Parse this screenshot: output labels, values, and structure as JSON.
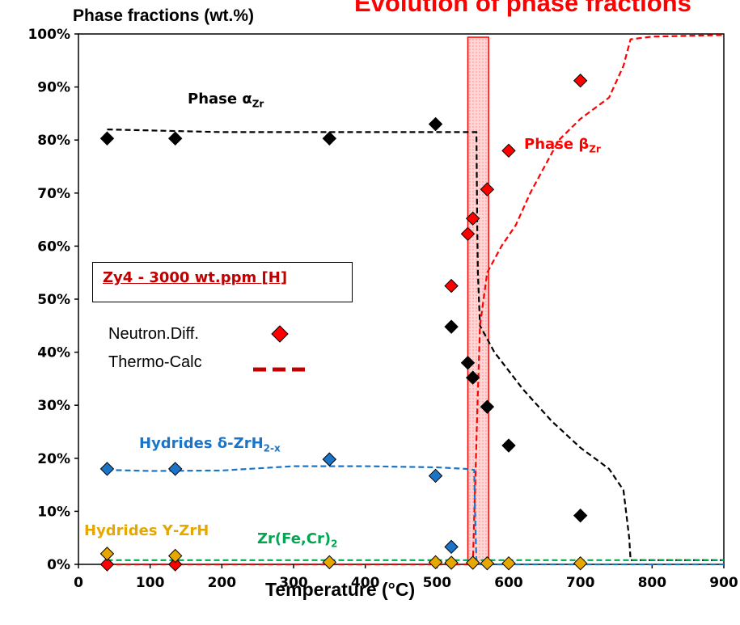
{
  "chart_data": {
    "type": "scatter",
    "title": "Evolution of phase fractions",
    "ylabel": "Phase fractions (wt.%)",
    "xlabel": "Temperature (°C)",
    "xlim": [
      0,
      900
    ],
    "ylim": [
      0,
      100
    ],
    "x_ticks": [
      0,
      100,
      200,
      300,
      400,
      500,
      600,
      700,
      800,
      900
    ],
    "y_ticks": [
      0,
      10,
      20,
      30,
      40,
      50,
      60,
      70,
      80,
      90,
      100
    ],
    "y_tick_suffix": "%",
    "highlight_band": {
      "x_range": [
        543,
        572
      ],
      "color": "#ff9999"
    },
    "inset_label": "Zy4 - 3000 wt.ppm [H]",
    "legend": [
      {
        "label": "Neutron.Diff.",
        "marker": "diamond",
        "color": "#ff0000"
      },
      {
        "label": "Thermo-Calc",
        "marker": "dashed-line",
        "color": "#c00000"
      }
    ],
    "series": [
      {
        "key": "alpha",
        "color": "#000000",
        "label_parts": [
          "Phase α",
          "Zr",
          ""
        ],
        "points": [
          [
            40,
            80.3
          ],
          [
            135,
            80.3
          ],
          [
            350,
            80.3
          ],
          [
            498,
            83
          ],
          [
            520,
            44.8
          ],
          [
            543,
            38
          ],
          [
            550,
            35.2
          ],
          [
            570,
            29.7
          ],
          [
            600,
            22.4
          ],
          [
            700,
            9.2
          ]
        ],
        "curve": [
          [
            40,
            82
          ],
          [
            200,
            81.5
          ],
          [
            350,
            81.5
          ],
          [
            500,
            81.5
          ],
          [
            555,
            81.5
          ],
          [
            556,
            65
          ],
          [
            557,
            55
          ],
          [
            560,
            45
          ],
          [
            580,
            40
          ],
          [
            620,
            33
          ],
          [
            660,
            27
          ],
          [
            700,
            22
          ],
          [
            740,
            18
          ],
          [
            760,
            14
          ],
          [
            768,
            5
          ],
          [
            770,
            0.8
          ],
          [
            900,
            0.8
          ]
        ]
      },
      {
        "key": "beta",
        "color": "#ff0000",
        "label_parts": [
          "Phase β",
          "Zr",
          ""
        ],
        "points": [
          [
            40,
            0
          ],
          [
            135,
            0
          ],
          [
            543,
            62.3
          ],
          [
            550,
            65.2
          ],
          [
            570,
            70.7
          ],
          [
            520,
            52.5
          ],
          [
            600,
            78
          ],
          [
            700,
            91.2
          ]
        ],
        "curve": [
          [
            40,
            0
          ],
          [
            550,
            0
          ],
          [
            556,
            28
          ],
          [
            560,
            45
          ],
          [
            570,
            55
          ],
          [
            590,
            60
          ],
          [
            610,
            64
          ],
          [
            630,
            70
          ],
          [
            650,
            75
          ],
          [
            670,
            80
          ],
          [
            700,
            84
          ],
          [
            740,
            88
          ],
          [
            760,
            94
          ],
          [
            770,
            99
          ],
          [
            800,
            99.5
          ],
          [
            900,
            99.8
          ]
        ]
      },
      {
        "key": "delta",
        "color": "#1a75c8",
        "label_parts": [
          "Hydrides δ-ZrH",
          "2-x",
          ""
        ],
        "points": [
          [
            40,
            18
          ],
          [
            135,
            18
          ],
          [
            350,
            19.8
          ],
          [
            498,
            16.7
          ],
          [
            520,
            3.3
          ]
        ],
        "curve": [
          [
            40,
            17.8
          ],
          [
            100,
            17.6
          ],
          [
            200,
            17.7
          ],
          [
            300,
            18.5
          ],
          [
            400,
            18.5
          ],
          [
            500,
            18.3
          ],
          [
            540,
            18
          ],
          [
            552,
            17.8
          ],
          [
            553,
            10
          ],
          [
            555,
            0.5
          ],
          [
            560,
            0
          ],
          [
            900,
            0
          ]
        ]
      },
      {
        "key": "gamma",
        "color": "#e6a800",
        "label_parts": [
          "Hydrides Υ-ZrH",
          "",
          ""
        ],
        "points": [
          [
            40,
            2
          ],
          [
            135,
            1.6
          ],
          [
            350,
            0.4
          ],
          [
            498,
            0.4
          ],
          [
            520,
            0.3
          ],
          [
            550,
            0.3
          ],
          [
            570,
            0.2
          ],
          [
            600,
            0.2
          ],
          [
            700,
            0.2
          ]
        ],
        "curve": []
      },
      {
        "key": "laves",
        "color": "#00a651",
        "label_parts": [
          "Zr(Fe,Cr)",
          "2",
          ""
        ],
        "points": [],
        "curve": [
          [
            40,
            0.8
          ],
          [
            300,
            0.8
          ],
          [
            500,
            0.8
          ],
          [
            900,
            0.8
          ]
        ]
      }
    ]
  }
}
